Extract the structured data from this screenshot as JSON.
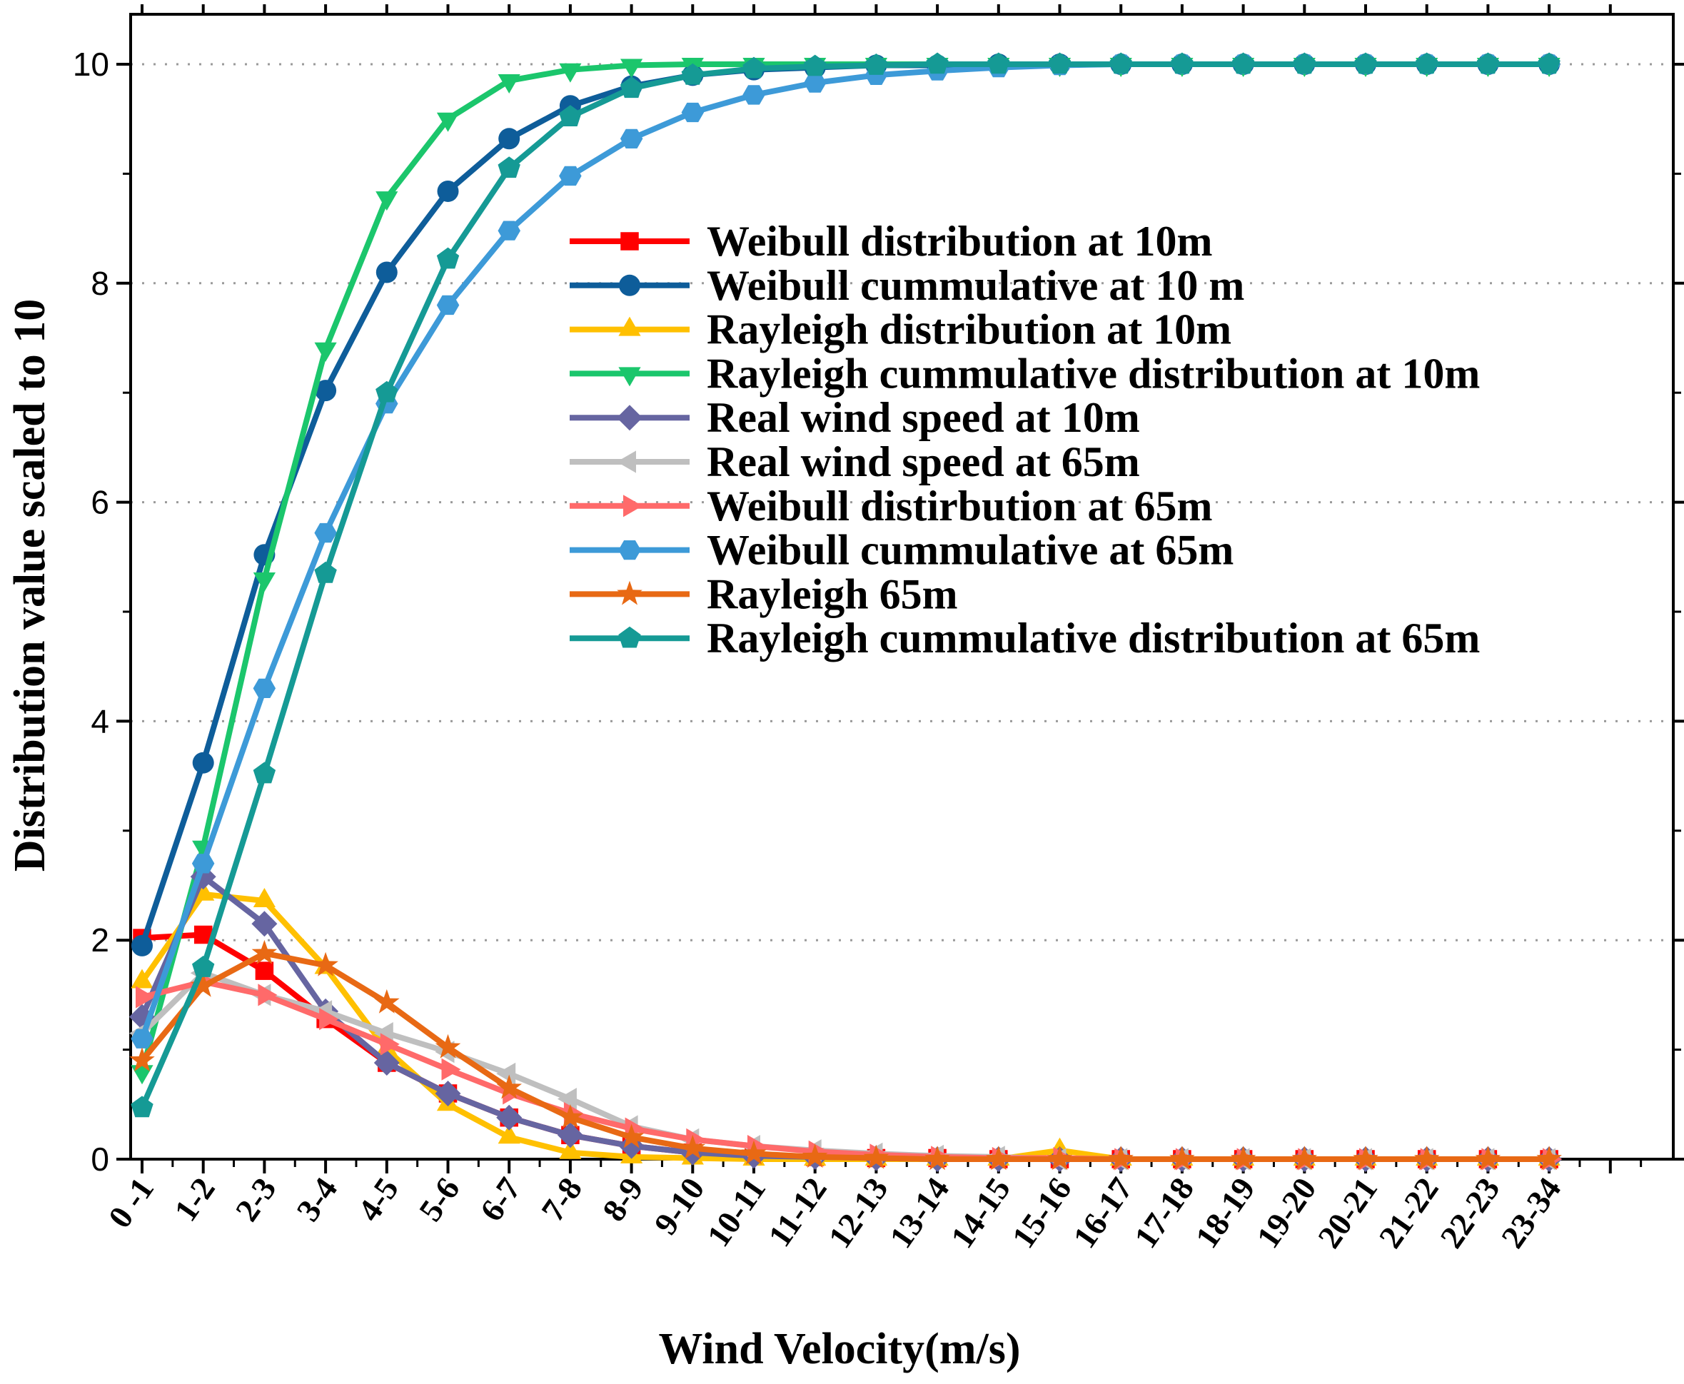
{
  "chart_data": {
    "type": "line",
    "title": "",
    "xlabel": "Wind Velocity(m/s)",
    "ylabel": "Distribution value scaled to 10",
    "ylim": [
      0,
      10
    ],
    "yticks": [
      "0",
      "2",
      "4",
      "6",
      "8",
      "10"
    ],
    "grid": "horizontal dotted",
    "legend_position": "right-center",
    "categories": [
      "0 -1",
      "1-2",
      "2-3",
      "3-4",
      "4-5",
      "5-6",
      "6-7",
      "7-8",
      "8-9",
      "9-10",
      "10-11",
      "11-12",
      "12-13",
      "13-14",
      "14-15",
      "15-16",
      "16-17",
      "17-18",
      "18-19",
      "19-20",
      "20-21",
      "21-22",
      "22-23",
      "23-34"
    ],
    "series": [
      {
        "name": "Weibull distribution at 10m",
        "color": "#FF0000",
        "marker": "square",
        "values": [
          2.02,
          2.05,
          1.72,
          1.28,
          0.88,
          0.6,
          0.38,
          0.22,
          0.12,
          0.06,
          0.03,
          0.02,
          0.01,
          0.01,
          0.0,
          0.0,
          0.0,
          0.0,
          0.0,
          0.0,
          0.0,
          0.0,
          0.0,
          0.0
        ]
      },
      {
        "name": "Weibull cummulative at 10 m",
        "color": "#0E5D9A",
        "marker": "circle",
        "values": [
          1.95,
          3.62,
          5.52,
          7.02,
          8.1,
          8.84,
          9.32,
          9.62,
          9.8,
          9.9,
          9.95,
          9.97,
          9.99,
          9.99,
          10,
          10,
          10,
          10,
          10,
          10,
          10,
          10,
          10,
          10
        ]
      },
      {
        "name": "Rayleigh distribution at 10m",
        "color": "#FFC000",
        "marker": "triangle-up",
        "values": [
          1.62,
          2.42,
          2.36,
          1.75,
          1.0,
          0.5,
          0.2,
          0.06,
          0.02,
          0.01,
          0.0,
          0.0,
          0.0,
          0.0,
          0.0,
          0.08,
          0.0,
          0.0,
          0.0,
          0.0,
          0.0,
          0.0,
          0.0,
          0.0
        ]
      },
      {
        "name": "Rayleigh cummulative distribution at 10m",
        "color": "#1BC66C",
        "marker": "triangle-down",
        "values": [
          0.8,
          2.85,
          5.3,
          7.4,
          8.78,
          9.5,
          9.85,
          9.95,
          9.99,
          10,
          10,
          10,
          10,
          10,
          10,
          10,
          10,
          10,
          10,
          10,
          10,
          10,
          10,
          10
        ]
      },
      {
        "name": "Real wind speed at 10m",
        "color": "#6665A1",
        "marker": "diamond",
        "values": [
          1.3,
          2.58,
          2.15,
          1.35,
          0.88,
          0.6,
          0.38,
          0.22,
          0.12,
          0.06,
          0.03,
          0.02,
          0.01,
          0.0,
          0.0,
          0.0,
          0.0,
          0.0,
          0.0,
          0.0,
          0.0,
          0.0,
          0.0,
          0.0
        ]
      },
      {
        "name": "Real wind speed at 65m",
        "color": "#BFBFBF",
        "marker": "triangle-left",
        "values": [
          1.15,
          1.7,
          1.5,
          1.35,
          1.15,
          0.98,
          0.78,
          0.55,
          0.3,
          0.18,
          0.12,
          0.08,
          0.05,
          0.03,
          0.02,
          0.0,
          0.0,
          0.0,
          0.0,
          0.0,
          0.0,
          0.0,
          0.0,
          0.0
        ]
      },
      {
        "name": "Weibull distirbution at 65m",
        "color": "#FF6A6A",
        "marker": "triangle-right",
        "values": [
          1.48,
          1.62,
          1.5,
          1.28,
          1.05,
          0.82,
          0.6,
          0.42,
          0.28,
          0.18,
          0.12,
          0.07,
          0.04,
          0.02,
          0.01,
          0.01,
          0.0,
          0.0,
          0.0,
          0.0,
          0.0,
          0.0,
          0.0,
          0.0
        ]
      },
      {
        "name": "Weibull cummulative at 65m",
        "color": "#3D9AD8",
        "marker": "hexagon",
        "values": [
          1.1,
          2.7,
          4.3,
          5.72,
          6.9,
          7.8,
          8.48,
          8.98,
          9.32,
          9.56,
          9.72,
          9.83,
          9.9,
          9.94,
          9.97,
          9.99,
          10,
          10,
          10,
          10,
          10,
          10,
          10,
          10
        ]
      },
      {
        "name": "Rayleigh 65m",
        "color": "#E86914",
        "marker": "star",
        "values": [
          0.9,
          1.58,
          1.88,
          1.77,
          1.43,
          1.02,
          0.65,
          0.38,
          0.2,
          0.1,
          0.05,
          0.02,
          0.01,
          0.0,
          0.0,
          0.0,
          0.0,
          0.0,
          0.0,
          0.0,
          0.0,
          0.0,
          0.0,
          0.0
        ]
      },
      {
        "name": "Rayleigh cummulative distribution at 65m",
        "color": "#159A95",
        "marker": "pentagon",
        "values": [
          0.47,
          1.75,
          3.52,
          5.35,
          7.0,
          8.22,
          9.05,
          9.52,
          9.78,
          9.9,
          9.96,
          9.98,
          9.99,
          10,
          10,
          10,
          10,
          10,
          10,
          10,
          10,
          10,
          10,
          10
        ]
      }
    ]
  }
}
